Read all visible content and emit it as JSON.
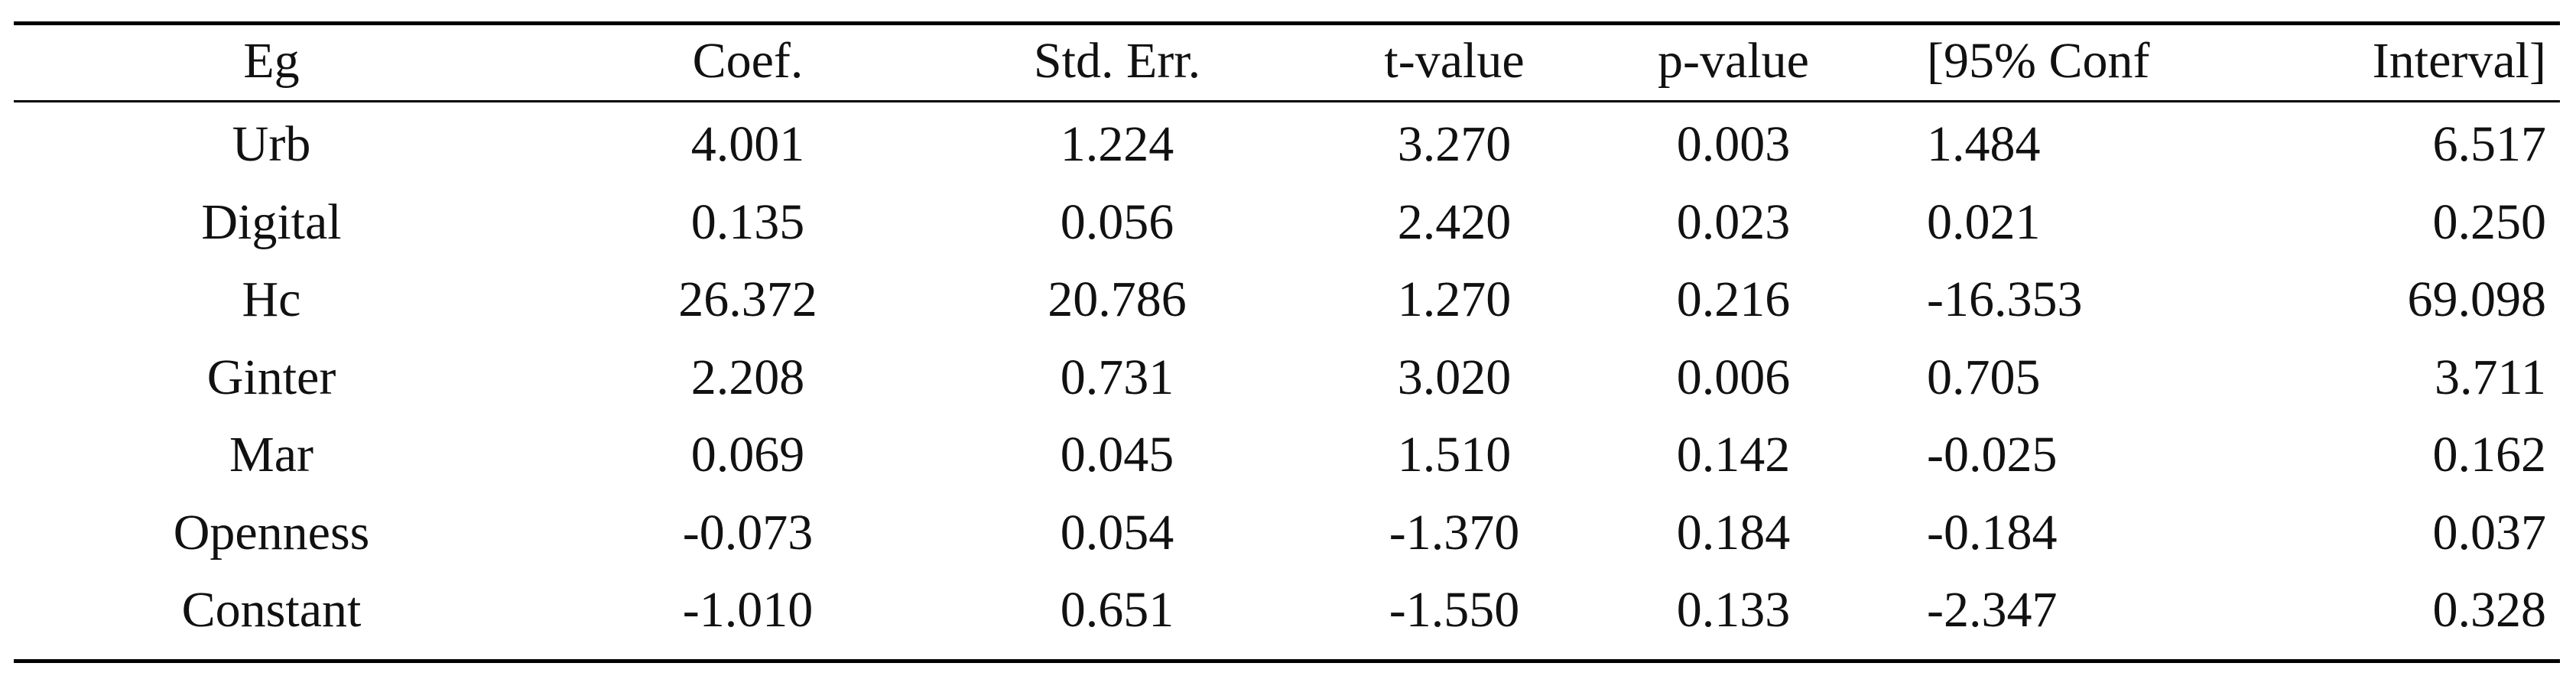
{
  "table": {
    "header": [
      "Eg",
      "Coef.",
      "Std. Err.",
      "t-value",
      "p-value",
      "[95% Conf",
      "Interval]"
    ],
    "rows": [
      [
        "Urb",
        "4.001",
        "1.224",
        "3.270",
        "0.003",
        "1.484",
        "6.517"
      ],
      [
        "Digital",
        "0.135",
        "0.056",
        "2.420",
        "0.023",
        "0.021",
        "0.250"
      ],
      [
        "Hc",
        "26.372",
        "20.786",
        "1.270",
        "0.216",
        "-16.353",
        "69.098"
      ],
      [
        "Ginter",
        "2.208",
        "0.731",
        "3.020",
        "0.006",
        "0.705",
        "3.711"
      ],
      [
        "Mar",
        "0.069",
        "0.045",
        "1.510",
        "0.142",
        "-0.025",
        "0.162"
      ],
      [
        "Openness",
        "-0.073",
        "0.054",
        "-1.370",
        "0.184",
        "-0.184",
        "0.037"
      ],
      [
        "Constant",
        "-1.010",
        "0.651",
        "-1.550",
        "0.133",
        "-2.347",
        "0.328"
      ]
    ]
  }
}
